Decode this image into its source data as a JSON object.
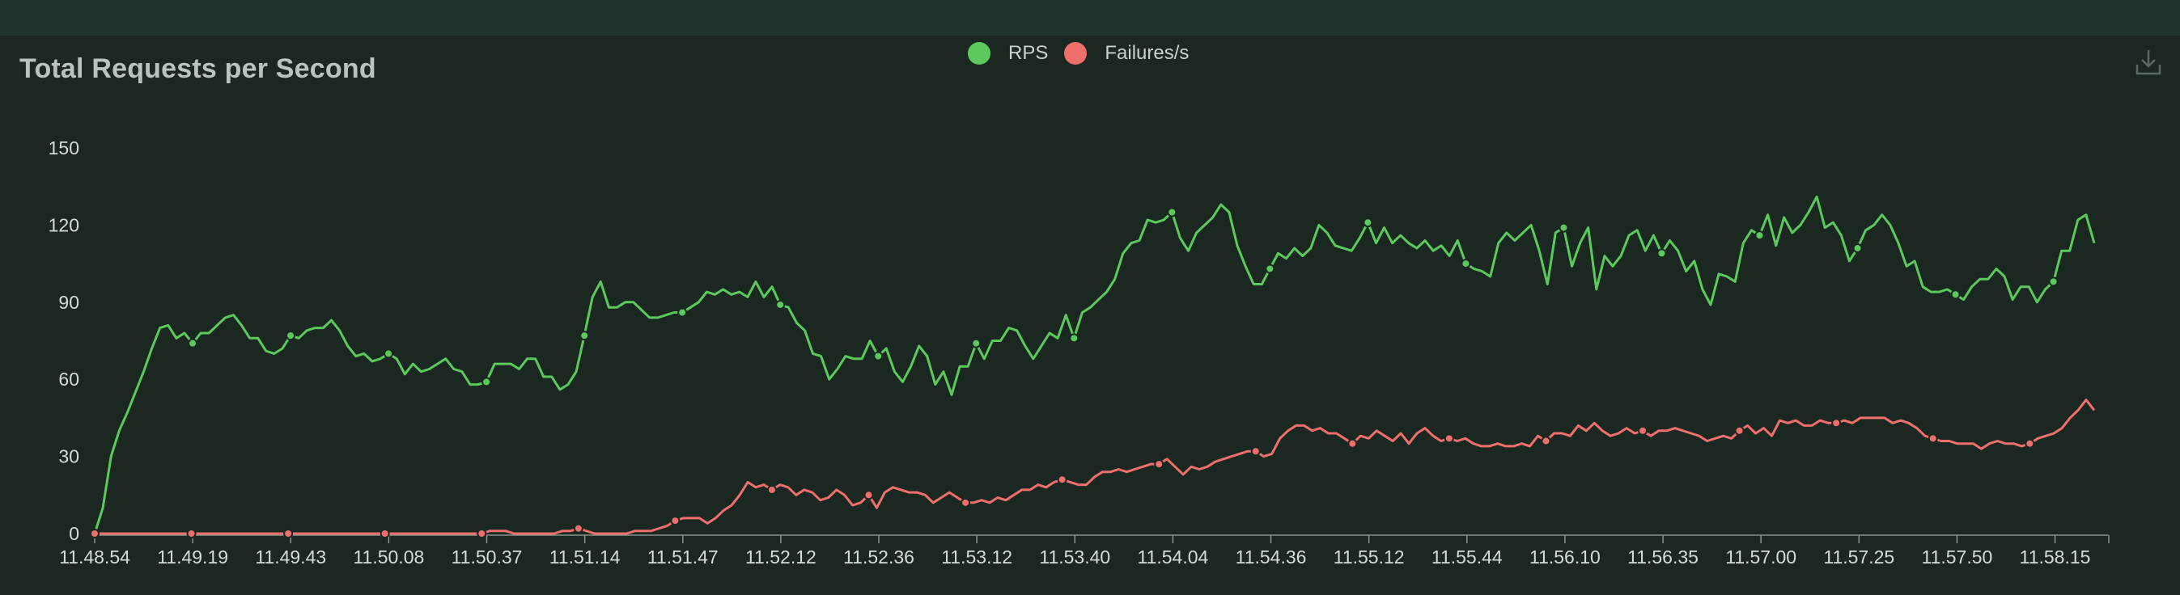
{
  "title": "Total Requests per Second",
  "legend": [
    {
      "name": "RPS",
      "color": "#5cc95d"
    },
    {
      "name": "Failures/s",
      "color": "#ef6f6c"
    }
  ],
  "download_icon": "download-icon",
  "colors": {
    "background": "#1b2822",
    "axis": "#8a948f",
    "rps": "#5cc95d",
    "failures": "#ef6f6c"
  },
  "chart_data": {
    "type": "line",
    "title": "Total Requests per Second",
    "ylim": [
      0,
      150
    ],
    "y_ticks": [
      0,
      30,
      60,
      90,
      120,
      150
    ],
    "x_tick_labels": [
      "11.48.54",
      "11.49.19",
      "11.49.43",
      "11.50.08",
      "11.50.37",
      "11.51.14",
      "11.51.47",
      "11.52.12",
      "11.52.36",
      "11.53.12",
      "11.53.40",
      "11.54.04",
      "11.54.36",
      "11.55.12",
      "11.55.44",
      "11.56.10",
      "11.56.35",
      "11.57.00",
      "11.57.25",
      "11.57.50",
      "11.58.15"
    ],
    "grid": false,
    "legend_position": "top-center",
    "series": [
      {
        "name": "RPS",
        "color": "#5cc95d",
        "values": [
          0,
          10,
          30,
          40,
          47,
          55,
          63,
          72,
          80,
          81,
          76,
          78,
          74,
          78,
          78,
          81,
          84,
          85,
          81,
          76,
          76,
          71,
          70,
          72,
          77,
          76,
          79,
          80,
          80,
          83,
          79,
          73,
          69,
          70,
          67,
          68,
          70,
          68,
          62,
          66,
          63,
          64,
          66,
          68,
          64,
          63,
          58,
          58,
          59,
          66,
          66,
          66,
          64,
          68,
          68,
          61,
          61,
          56,
          58,
          63,
          77,
          92,
          98,
          88,
          88,
          90,
          90,
          87,
          84,
          84,
          85,
          86,
          86,
          88,
          90,
          94,
          93,
          95,
          93,
          94,
          92,
          98,
          92,
          96,
          89,
          88,
          82,
          79,
          70,
          69,
          60,
          64,
          69,
          68,
          68,
          75,
          69,
          72,
          63,
          59,
          65,
          73,
          69,
          58,
          63,
          54,
          65,
          65,
          74,
          68,
          75,
          75,
          80,
          79,
          73,
          68,
          73,
          78,
          76,
          85,
          76,
          86,
          88,
          91,
          94,
          99,
          109,
          113,
          114,
          122,
          121,
          122,
          125,
          115,
          110,
          117,
          120,
          123,
          128,
          125,
          112,
          104,
          97,
          97,
          103,
          109,
          107,
          111,
          108,
          111,
          120,
          117,
          112,
          111,
          110,
          115,
          121,
          113,
          119,
          113,
          116,
          113,
          111,
          114,
          110,
          112,
          108,
          114,
          105,
          103,
          102,
          100,
          113,
          117,
          114,
          117,
          120,
          110,
          97,
          117,
          119,
          104,
          113,
          119,
          95,
          108,
          104,
          108,
          116,
          118,
          110,
          116,
          109,
          114,
          110,
          102,
          106,
          95,
          89,
          101,
          100,
          98,
          113,
          118,
          116,
          124,
          112,
          123,
          117,
          120,
          125,
          131,
          119,
          121,
          116,
          106,
          111,
          118,
          120,
          124,
          120,
          113,
          104,
          106,
          96,
          94,
          94,
          95,
          93,
          91,
          96,
          99,
          99,
          103,
          100,
          91,
          96,
          96,
          90,
          95,
          98,
          110,
          110,
          122,
          124,
          113
        ]
      },
      {
        "name": "Failures/s",
        "color": "#ef6f6c",
        "values": [
          0,
          0,
          0,
          0,
          0,
          0,
          0,
          0,
          0,
          0,
          0,
          0,
          0,
          0,
          0,
          0,
          0,
          0,
          0,
          0,
          0,
          0,
          0,
          0,
          0,
          0,
          0,
          0,
          0,
          0,
          0,
          0,
          0,
          0,
          0,
          0,
          0,
          0,
          0,
          0,
          0,
          0,
          0,
          0,
          0,
          0,
          0,
          0,
          0,
          1,
          1,
          1,
          0,
          0,
          0,
          0,
          0,
          0,
          1,
          1,
          2,
          1,
          0,
          0,
          0,
          0,
          0,
          1,
          1,
          1,
          2,
          3,
          5,
          6,
          6,
          6,
          4,
          6,
          9,
          11,
          15,
          20,
          18,
          19,
          17,
          19,
          18,
          15,
          17,
          16,
          13,
          14,
          17,
          15,
          11,
          12,
          15,
          10,
          16,
          18,
          17,
          16,
          16,
          15,
          12,
          14,
          16,
          14,
          12,
          12,
          13,
          12,
          14,
          13,
          15,
          17,
          17,
          19,
          18,
          20,
          21,
          20,
          19,
          19,
          22,
          24,
          24,
          25,
          24,
          25,
          26,
          27,
          27,
          29,
          26,
          23,
          26,
          25,
          26,
          28,
          29,
          30,
          31,
          32,
          32,
          30,
          31,
          37,
          40,
          42,
          42,
          40,
          41,
          39,
          39,
          37,
          35,
          38,
          37,
          40,
          38,
          36,
          39,
          35,
          39,
          41,
          38,
          36,
          37,
          36,
          37,
          35,
          34,
          34,
          35,
          34,
          34,
          35,
          34,
          38,
          36,
          39,
          39,
          38,
          42,
          40,
          43,
          40,
          38,
          39,
          41,
          39,
          40,
          38,
          40,
          40,
          41,
          40,
          39,
          38,
          36,
          37,
          38,
          37,
          40,
          42,
          39,
          41,
          38,
          44,
          43,
          44,
          42,
          42,
          44,
          43,
          43,
          44,
          43,
          45,
          45,
          45,
          45,
          43,
          44,
          43,
          41,
          38,
          37,
          36,
          36,
          35,
          35,
          35,
          33,
          35,
          36,
          35,
          35,
          34,
          35,
          37,
          38,
          39,
          41,
          45,
          48,
          52,
          48
        ]
      }
    ]
  }
}
